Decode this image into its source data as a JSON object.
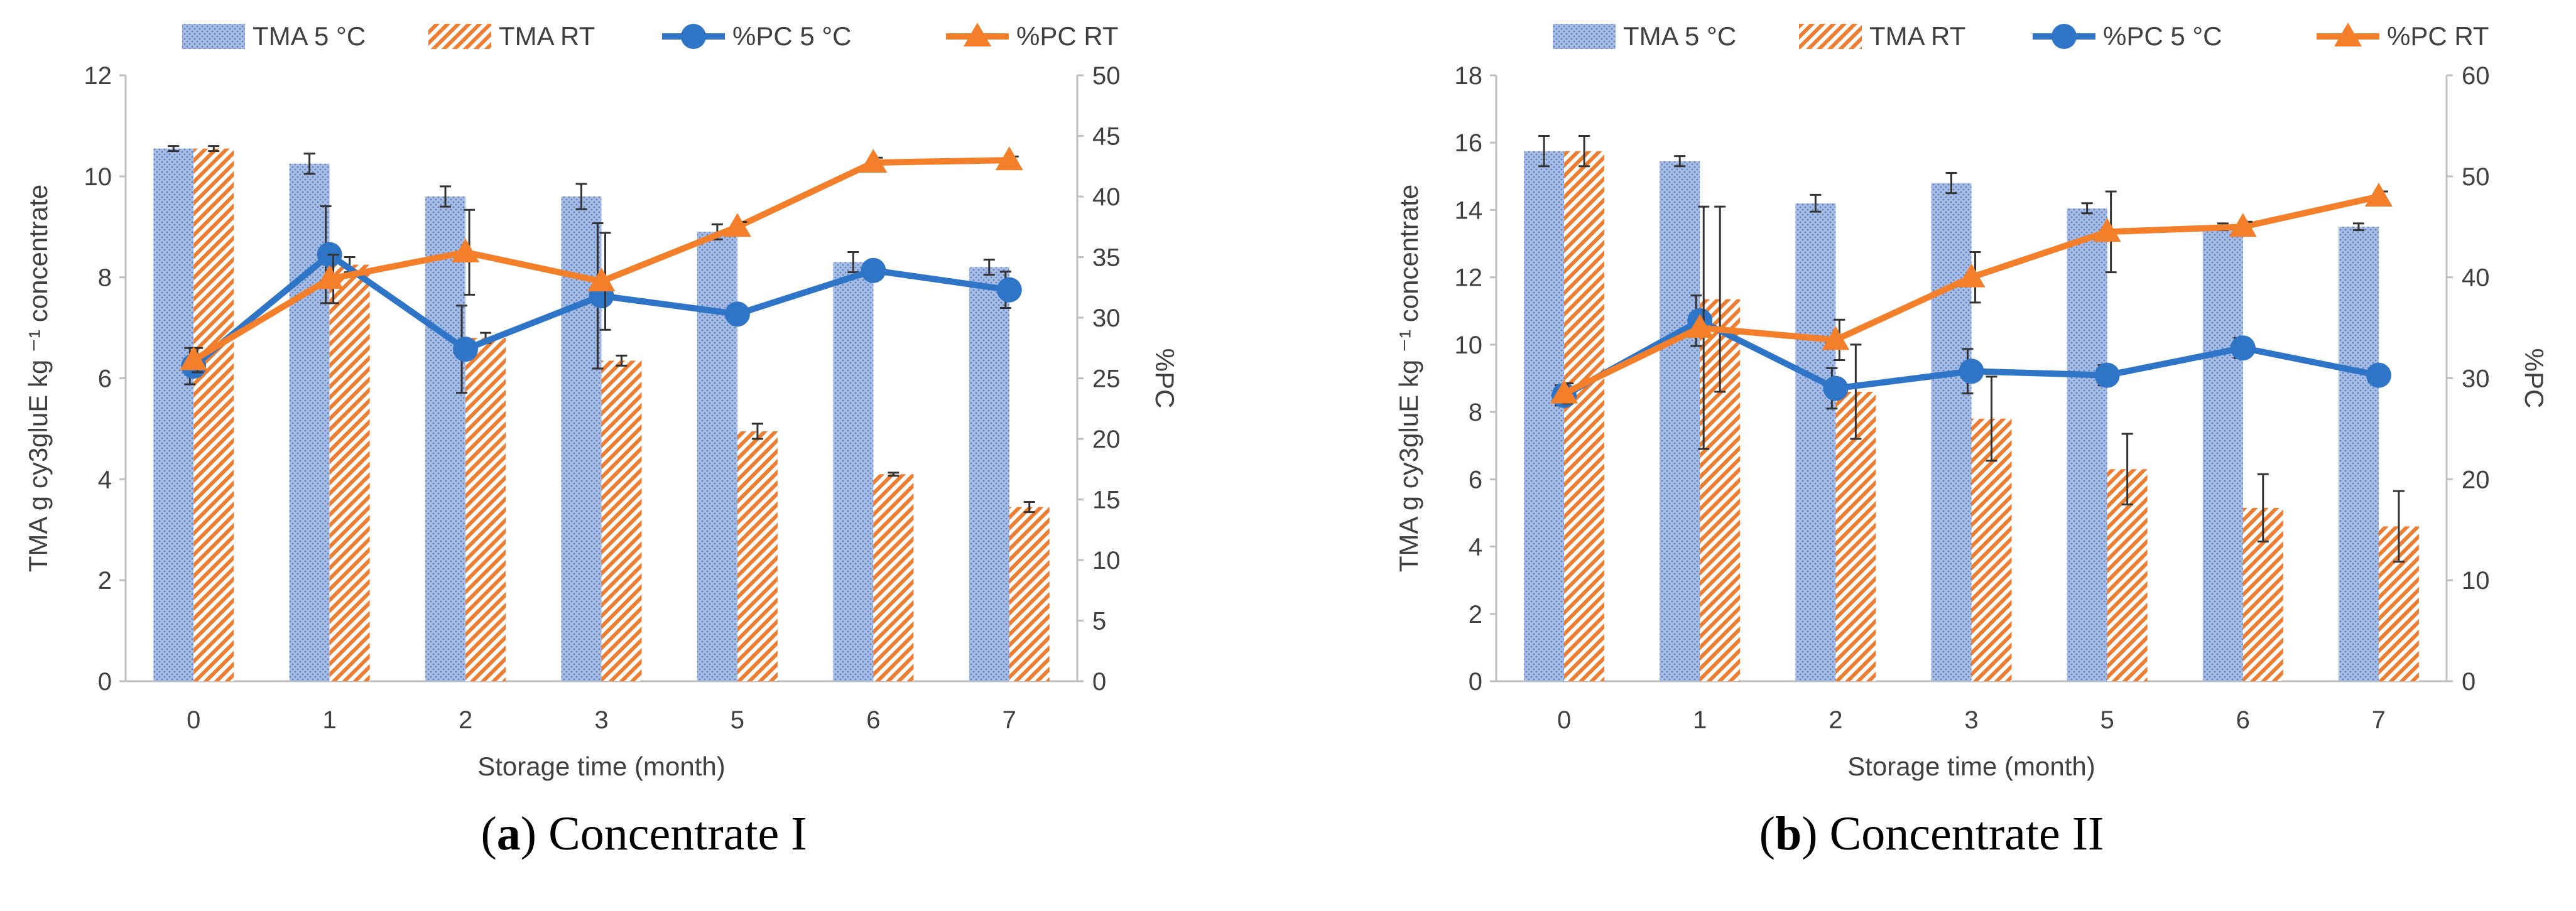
{
  "colors": {
    "tma_5c": "#4472C4",
    "tma_rt": "#ED7D31",
    "pc_5c": "#2E75C8",
    "pc_rt": "#F47F2A",
    "axis": "#bfbfbf",
    "text": "#404040"
  },
  "captions": [
    {
      "letter": "a",
      "text": " Concentrate I"
    },
    {
      "letter": "b",
      "text": " Concentrate II"
    }
  ],
  "chart_data": [
    {
      "type": "bar",
      "legend": [
        "TMA 5 °C",
        "TMA RT",
        "%PC 5 °C",
        "%PC RT"
      ],
      "legend_position": "top",
      "categories": [
        "0",
        "1",
        "2",
        "3",
        "5",
        "6",
        "7"
      ],
      "xlabel": "Storage time (month)",
      "ylabel": "TMA g cy3gluE kg ⁻¹ concentrate",
      "y2label": "%PC",
      "ylim": [
        0,
        12
      ],
      "yticks": [
        "0",
        "2",
        "4",
        "6",
        "8",
        "10",
        "12"
      ],
      "y2lim": [
        0,
        50
      ],
      "y2ticks": [
        "0",
        "5",
        "10",
        "15",
        "20",
        "25",
        "30",
        "35",
        "40",
        "45",
        "50"
      ],
      "series": [
        {
          "name": "TMA 5 °C",
          "kind": "bar",
          "axis": "left",
          "values": [
            10.55,
            10.25,
            9.6,
            9.6,
            8.9,
            8.3,
            8.2
          ],
          "errors": [
            0.05,
            0.2,
            0.2,
            0.25,
            0.15,
            0.2,
            0.15
          ]
        },
        {
          "name": "TMA RT",
          "kind": "bar",
          "axis": "left",
          "values": [
            10.55,
            8.25,
            6.8,
            6.35,
            4.95,
            4.1,
            3.45
          ],
          "errors": [
            0.05,
            0.15,
            0.1,
            0.1,
            0.15,
            0.03,
            0.1
          ]
        },
        {
          "name": "%PC 5 °C",
          "kind": "line",
          "axis": "right",
          "values": [
            26.0,
            35.2,
            27.4,
            31.8,
            30.3,
            33.9,
            32.3
          ],
          "errors": [
            1.5,
            4.0,
            3.6,
            6.0,
            0.5,
            0.5,
            1.5
          ]
        },
        {
          "name": "%PC RT",
          "kind": "line",
          "axis": "right",
          "values": [
            26.5,
            33.2,
            35.4,
            33.0,
            37.5,
            42.8,
            43.0
          ],
          "errors": [
            1.0,
            2.0,
            3.5,
            4.0,
            0.4,
            0.4,
            0.3
          ]
        }
      ]
    },
    {
      "type": "bar",
      "legend": [
        "TMA 5 °C",
        "TMA RT",
        "%PC 5 °C",
        "%PC RT"
      ],
      "legend_position": "top",
      "categories": [
        "0",
        "1",
        "2",
        "3",
        "5",
        "6",
        "7"
      ],
      "xlabel": "Storage time (month)",
      "ylabel": "TMA g cy3gluE kg ⁻¹ concentrate",
      "y2label": "%PC",
      "ylim": [
        0,
        18
      ],
      "yticks": [
        "0",
        "2",
        "4",
        "6",
        "8",
        "10",
        "12",
        "14",
        "16",
        "18"
      ],
      "y2lim": [
        0,
        60
      ],
      "y2ticks": [
        "0",
        "10",
        "20",
        "30",
        "40",
        "50",
        "60"
      ],
      "series": [
        {
          "name": "TMA 5 °C",
          "kind": "bar",
          "axis": "left",
          "values": [
            15.75,
            15.45,
            14.2,
            14.8,
            14.05,
            13.5,
            13.5
          ],
          "errors": [
            0.45,
            0.15,
            0.25,
            0.3,
            0.15,
            0.1,
            0.1
          ]
        },
        {
          "name": "TMA RT",
          "kind": "bar",
          "axis": "left",
          "values": [
            15.75,
            11.35,
            8.6,
            7.8,
            6.3,
            5.15,
            4.6
          ],
          "errors": [
            0.45,
            2.75,
            1.4,
            1.25,
            1.05,
            1.0,
            1.05
          ]
        },
        {
          "name": "%PC 5 °C",
          "kind": "line",
          "axis": "right",
          "values": [
            28.3,
            35.7,
            29.0,
            30.7,
            30.3,
            33.0,
            30.3
          ],
          "errors": [
            1.0,
            2.5,
            2.0,
            2.2,
            1.0,
            1.0,
            0.5
          ]
        },
        {
          "name": "%PC RT",
          "kind": "line",
          "axis": "right",
          "values": [
            28.5,
            35.0,
            33.8,
            40.0,
            44.5,
            45.0,
            48.0
          ],
          "errors": [
            1.0,
            12.0,
            2.0,
            2.5,
            4.0,
            0.5,
            0.5
          ]
        }
      ]
    }
  ]
}
